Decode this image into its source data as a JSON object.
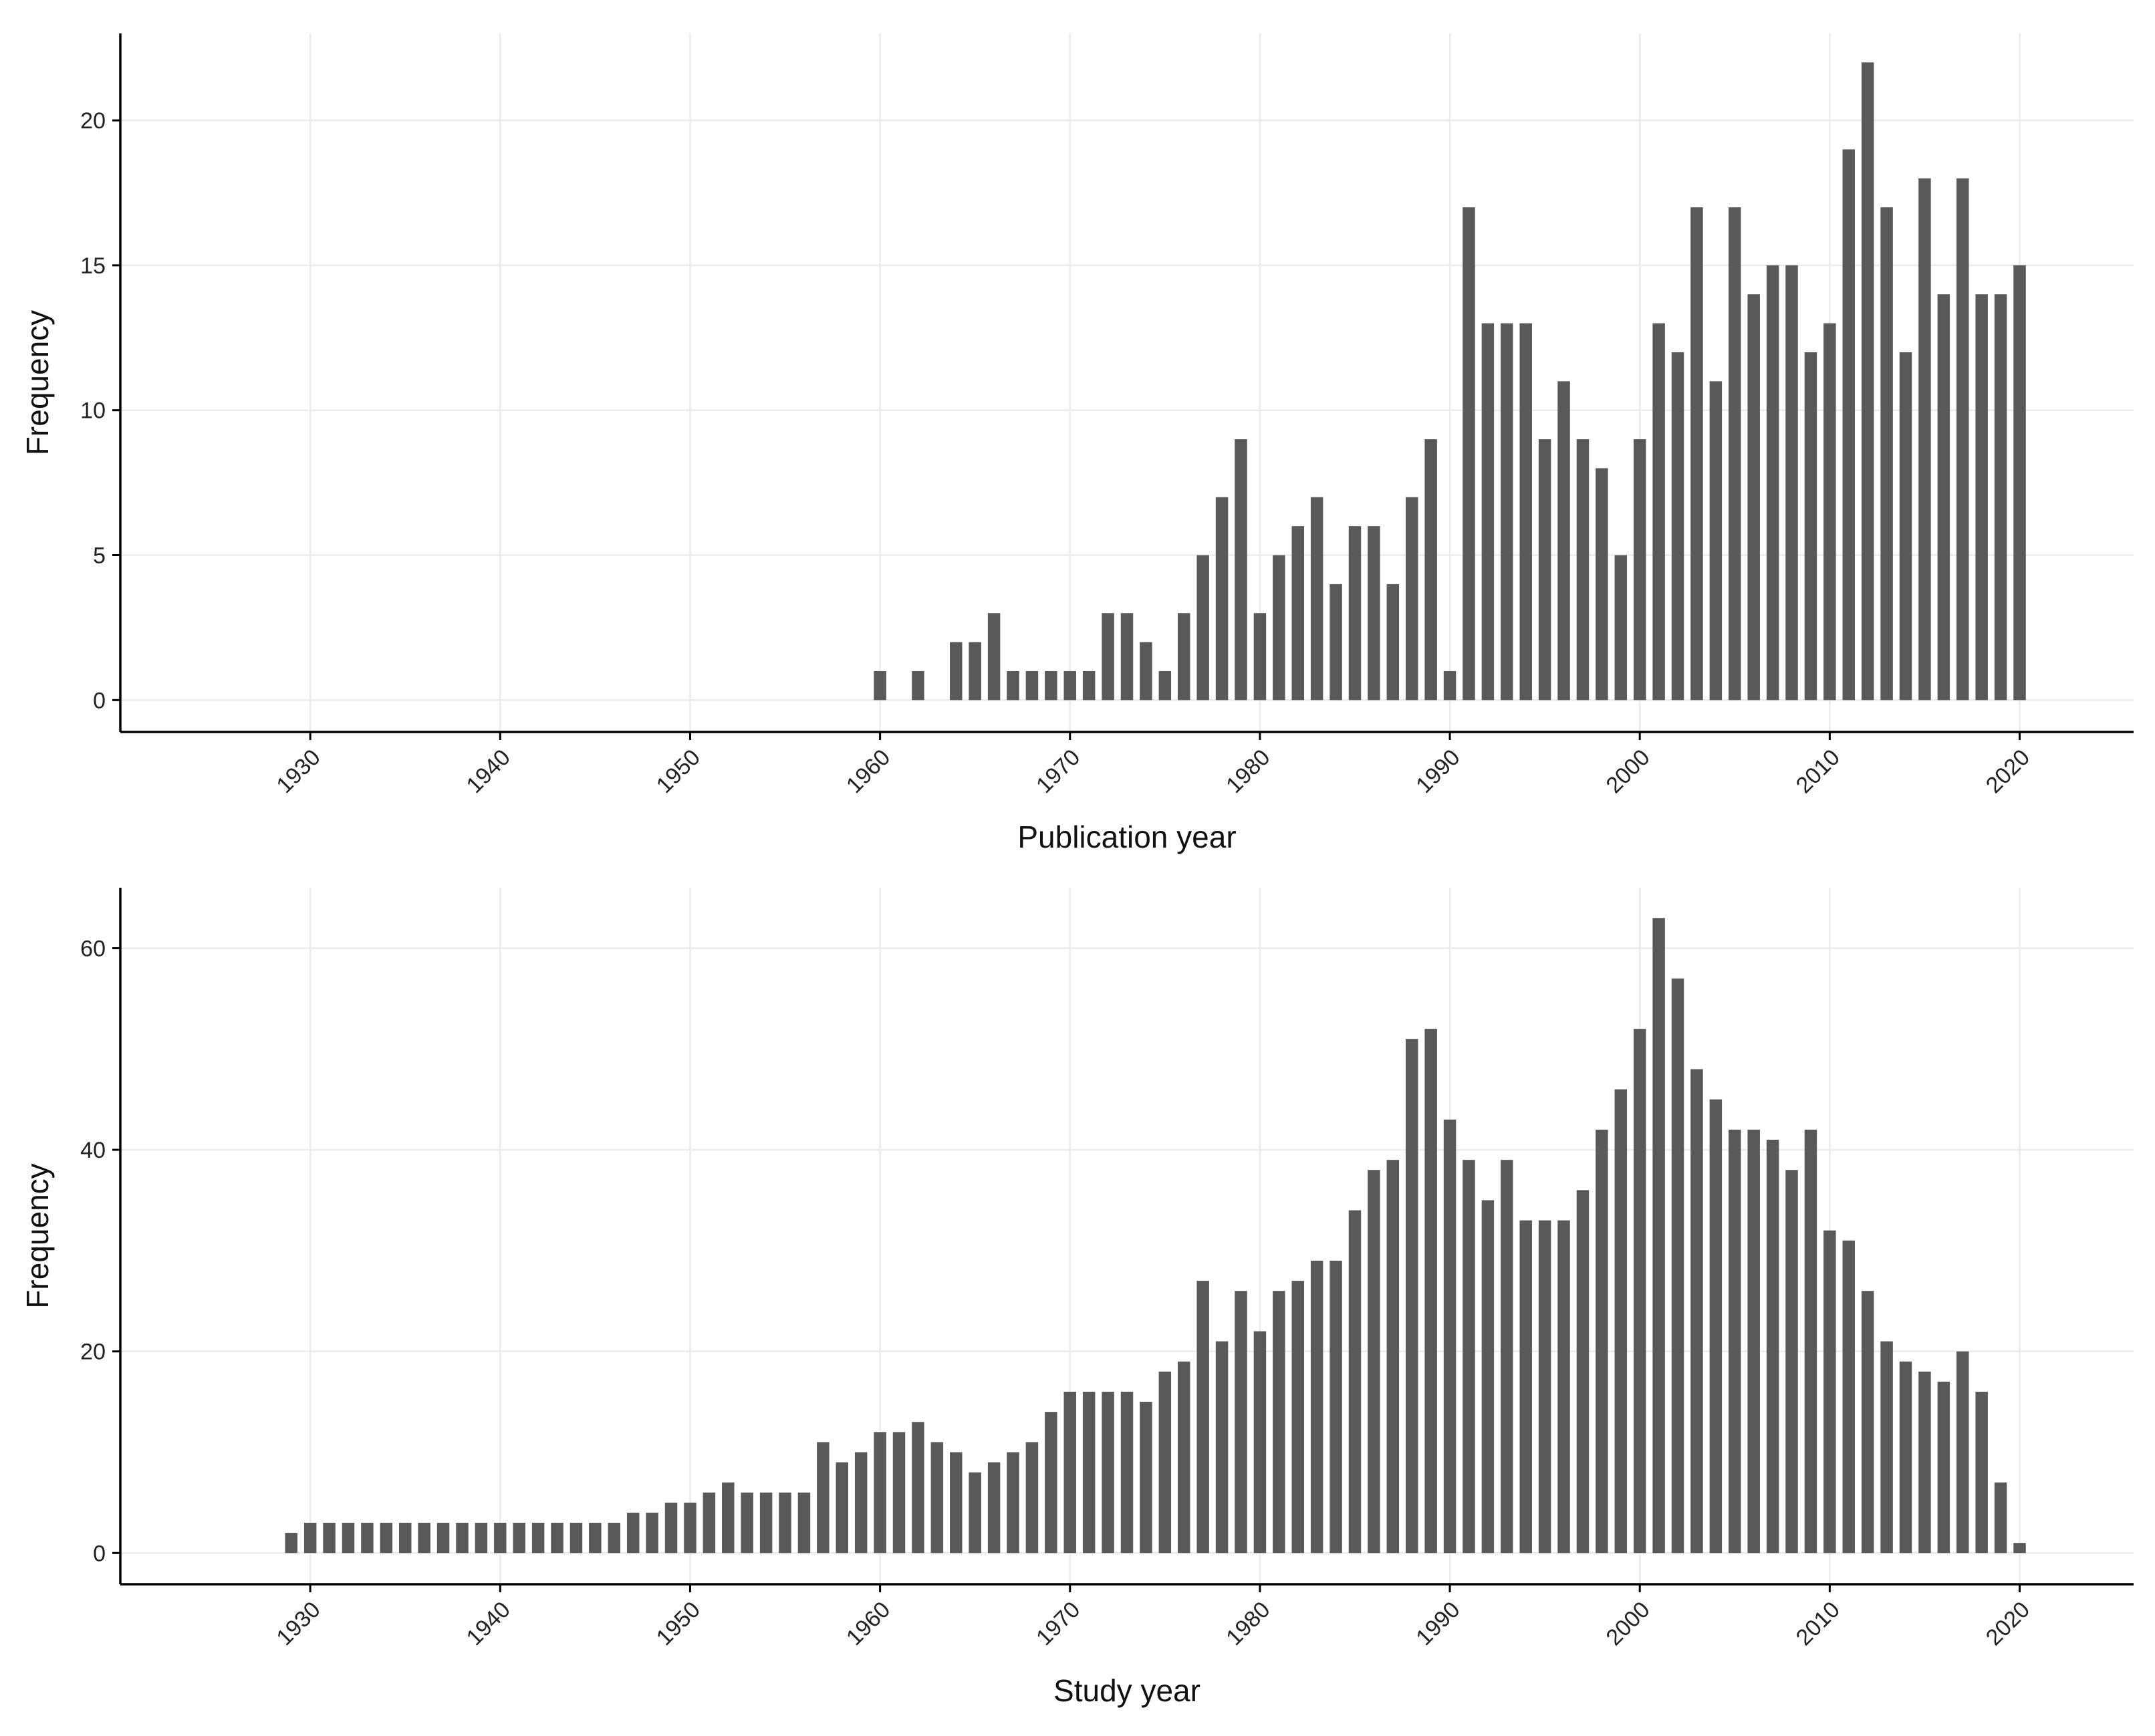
{
  "colors": {
    "bar": "#595959",
    "grid": "#ebebeb",
    "axis": "#000000",
    "tick_text": "#222222"
  },
  "chart_data": [
    {
      "type": "bar",
      "xlabel": "Publication year",
      "ylabel": "Frequency",
      "x_ticks": [
        1930,
        1940,
        1950,
        1960,
        1970,
        1980,
        1990,
        2000,
        2010,
        2020
      ],
      "y_ticks": [
        0,
        5,
        10,
        15,
        20
      ],
      "xlim": [
        1920,
        2026
      ],
      "ylim": [
        -1.1,
        23
      ],
      "grid": true,
      "x": [
        1960,
        1962,
        1964,
        1965,
        1966,
        1967,
        1968,
        1969,
        1970,
        1971,
        1972,
        1973,
        1974,
        1975,
        1976,
        1977,
        1978,
        1979,
        1980,
        1981,
        1982,
        1983,
        1984,
        1985,
        1986,
        1987,
        1988,
        1989,
        1990,
        1991,
        1992,
        1993,
        1994,
        1995,
        1996,
        1997,
        1998,
        1999,
        2000,
        2001,
        2002,
        2003,
        2004,
        2005,
        2006,
        2007,
        2008,
        2009,
        2010,
        2011,
        2012,
        2013,
        2014,
        2015,
        2016,
        2017,
        2018,
        2019,
        2020
      ],
      "values": [
        1,
        1,
        2,
        2,
        3,
        1,
        1,
        1,
        1,
        1,
        3,
        3,
        2,
        1,
        3,
        5,
        7,
        9,
        3,
        5,
        6,
        7,
        4,
        6,
        6,
        4,
        7,
        9,
        1,
        17,
        13,
        13,
        13,
        9,
        11,
        9,
        8,
        5,
        9,
        13,
        12,
        17,
        11,
        17,
        14,
        15,
        15,
        12,
        13,
        19,
        22,
        17,
        12,
        18,
        14,
        18,
        14,
        14,
        15
      ]
    },
    {
      "type": "bar",
      "xlabel": "Study year",
      "ylabel": "Frequency",
      "x_ticks": [
        1930,
        1940,
        1950,
        1960,
        1970,
        1980,
        1990,
        2000,
        2010,
        2020
      ],
      "y_ticks": [
        0,
        20,
        40,
        60
      ],
      "xlim": [
        1920,
        2026
      ],
      "ylim": [
        -3.1,
        66
      ],
      "grid": true,
      "x": [
        1929,
        1930,
        1931,
        1932,
        1933,
        1934,
        1935,
        1936,
        1937,
        1938,
        1939,
        1940,
        1941,
        1942,
        1943,
        1944,
        1945,
        1946,
        1947,
        1948,
        1949,
        1950,
        1951,
        1952,
        1953,
        1954,
        1955,
        1956,
        1957,
        1958,
        1959,
        1960,
        1961,
        1962,
        1963,
        1964,
        1965,
        1966,
        1967,
        1968,
        1969,
        1970,
        1971,
        1972,
        1973,
        1974,
        1975,
        1976,
        1977,
        1978,
        1979,
        1980,
        1981,
        1982,
        1983,
        1984,
        1985,
        1986,
        1987,
        1988,
        1989,
        1990,
        1991,
        1992,
        1993,
        1994,
        1995,
        1996,
        1997,
        1998,
        1999,
        2000,
        2001,
        2002,
        2003,
        2004,
        2005,
        2006,
        2007,
        2008,
        2009,
        2010,
        2011,
        2012,
        2013,
        2014,
        2015,
        2016,
        2017,
        2018,
        2019,
        2020
      ],
      "values": [
        2,
        3,
        3,
        3,
        3,
        3,
        3,
        3,
        3,
        3,
        3,
        3,
        3,
        3,
        3,
        3,
        3,
        3,
        4,
        4,
        5,
        5,
        6,
        7,
        6,
        6,
        6,
        6,
        11,
        9,
        10,
        12,
        12,
        13,
        11,
        10,
        8,
        9,
        10,
        11,
        14,
        16,
        16,
        16,
        16,
        15,
        18,
        19,
        27,
        21,
        26,
        22,
        26,
        27,
        29,
        29,
        34,
        38,
        39,
        51,
        52,
        43,
        39,
        35,
        39,
        33,
        33,
        33,
        36,
        42,
        46,
        52,
        63,
        57,
        48,
        45,
        42,
        42,
        41,
        38,
        42,
        32,
        31,
        26,
        21,
        19,
        18,
        17,
        20,
        16,
        7,
        1
      ]
    }
  ]
}
